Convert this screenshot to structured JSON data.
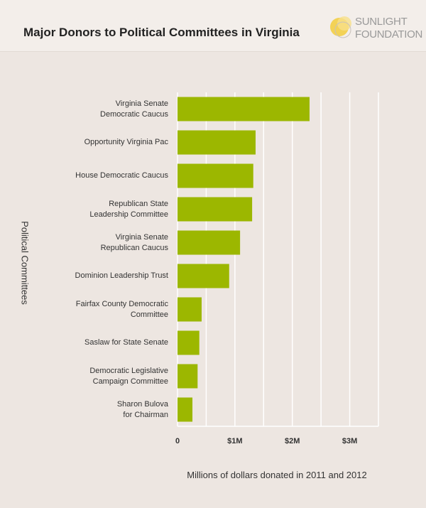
{
  "chart_data": {
    "type": "barh",
    "title": "Major Donors to Political Committees in Virginia",
    "brand": [
      "SUNLIGHT",
      "FOUNDATION"
    ],
    "categories": [
      "Virginia Senate\nDemocratic Caucus",
      "Opportunity Virginia Pac",
      "House Democratic Caucus",
      "Republican State\nLeadership Committee",
      "Virginia Senate\nRepublican Caucus",
      "Dominion Leadership Trust",
      "Fairfax County Democratic\nCommittee",
      "Saslaw for State Senate",
      "Democratic Legislative\nCampaign Committee",
      "Sharon Bulova\nfor Chairman"
    ],
    "values": [
      2.3,
      1.36,
      1.32,
      1.3,
      1.09,
      0.9,
      0.42,
      0.38,
      0.35,
      0.26
    ],
    "color": "#9cb700",
    "xlim": [
      0,
      3.5
    ],
    "xticks": [
      0,
      {
        "value": 1,
        "label": "$1M"
      },
      {
        "value": 2,
        "label": "$2M"
      },
      {
        "value": 3,
        "label": "$3M"
      }
    ],
    "minor_xticks": [
      0.5,
      1.5,
      2.5,
      3.5
    ],
    "grid": true,
    "xlabel": "Millions of dollars donated in 2011 and 2012",
    "ylabel": "Political Committees"
  }
}
